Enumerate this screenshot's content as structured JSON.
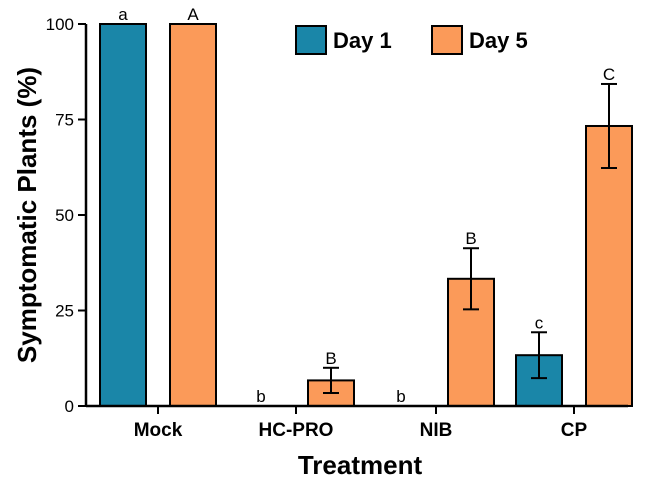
{
  "chart_data": {
    "type": "bar",
    "title": "",
    "xlabel": "Treatment",
    "ylabel": "Symptomatic Plants (%)",
    "ylim": [
      0,
      100
    ],
    "yticks": [
      "0",
      "25",
      "50",
      "75",
      "100"
    ],
    "categories": [
      "Mock",
      "HC-PRO",
      "NIB",
      "CP"
    ],
    "series": [
      {
        "name": "Day 1",
        "color": "#1a86a8",
        "values": [
          100,
          0,
          0,
          13.3
        ],
        "errors": [
          0,
          0,
          0,
          6.0
        ],
        "sig_letters": [
          "a",
          "b",
          "b",
          "c"
        ]
      },
      {
        "name": "Day 5",
        "color": "#fb9a59",
        "values": [
          100,
          6.7,
          33.3,
          73.3
        ],
        "errors": [
          0,
          3.3,
          8.0,
          11.0
        ],
        "sig_letters": [
          "A",
          "B",
          "B",
          "C"
        ]
      }
    ],
    "grid": false,
    "legend_position": "top-center"
  }
}
